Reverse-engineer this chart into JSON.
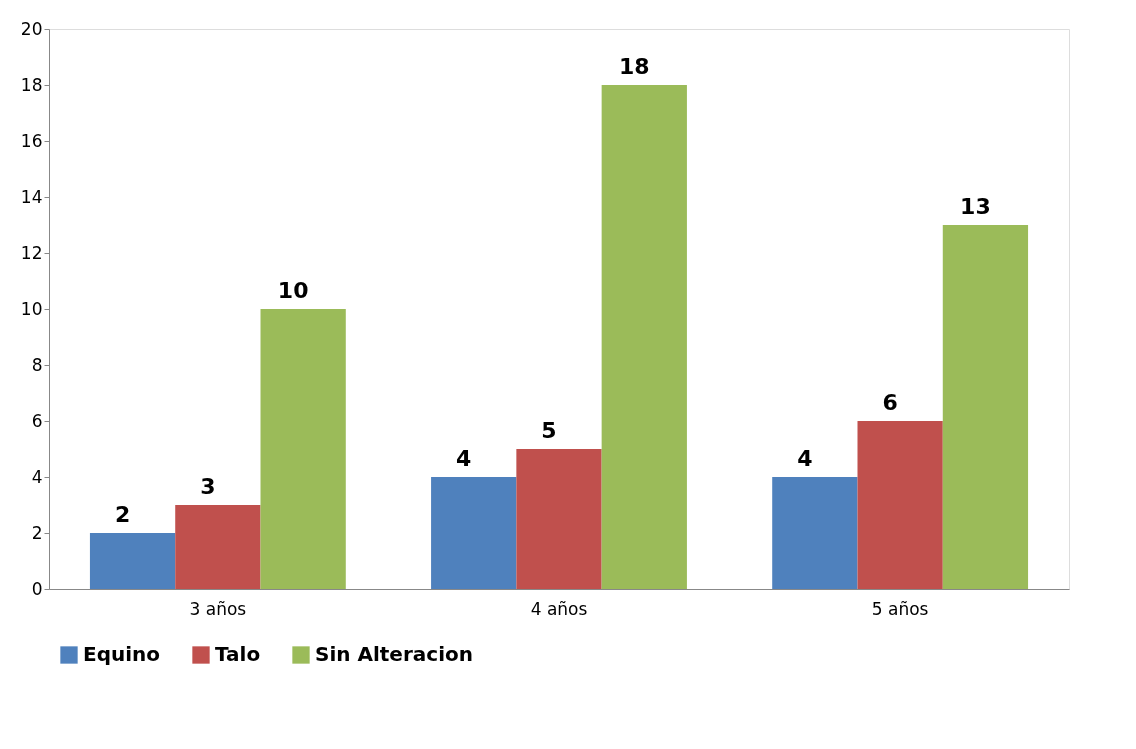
{
  "chart_data": {
    "type": "bar",
    "categories": [
      "3 años",
      "4 años",
      "5 años"
    ],
    "series": [
      {
        "name": "Equino",
        "color": "#4f81bd",
        "values": [
          2,
          4,
          4
        ]
      },
      {
        "name": "Talo",
        "color": "#c0504d",
        "values": [
          3,
          5,
          6
        ]
      },
      {
        "name": "Sin Alteracion",
        "color": "#9bbb59",
        "values": [
          10,
          18,
          13
        ]
      }
    ],
    "ylim": [
      0,
      20
    ],
    "yticks": [
      0,
      2,
      4,
      6,
      8,
      10,
      12,
      14,
      16,
      18,
      20
    ],
    "grid": false,
    "legend": "bottom",
    "data_labels": true
  }
}
